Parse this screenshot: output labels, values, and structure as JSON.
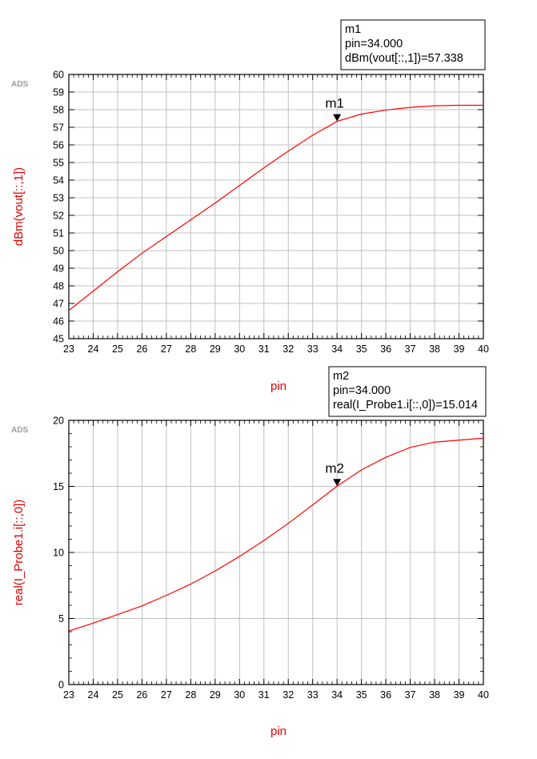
{
  "chart_data": [
    {
      "type": "line",
      "ads_label": "ADS",
      "xlabel": "pin",
      "ylabel": "dBm(vout[::,1])",
      "xlim": [
        23,
        40
      ],
      "ylim": [
        45,
        60
      ],
      "grid": true,
      "x_ticks": [
        23,
        24,
        25,
        26,
        27,
        28,
        29,
        30,
        31,
        32,
        33,
        34,
        35,
        36,
        37,
        38,
        39,
        40
      ],
      "y_ticks": [
        45,
        46,
        47,
        48,
        49,
        50,
        51,
        52,
        53,
        54,
        55,
        56,
        57,
        58,
        59,
        60
      ],
      "series": [
        {
          "color": "#ff0000",
          "x": [
            23,
            24,
            25,
            26,
            27,
            28,
            29,
            30,
            31,
            32,
            33,
            34,
            35,
            36,
            37,
            38,
            39,
            40
          ],
          "y": [
            46.6,
            47.7,
            48.8,
            49.85,
            50.8,
            51.75,
            52.7,
            53.7,
            54.7,
            55.65,
            56.55,
            57.338,
            57.75,
            57.98,
            58.13,
            58.22,
            58.25,
            58.25
          ]
        }
      ],
      "marker": {
        "name": "m1",
        "x": 34,
        "y": 57.338,
        "box_lines": [
          "m1",
          "pin=34.000",
          "dBm(vout[::,1])=57.338"
        ]
      }
    },
    {
      "type": "line",
      "ads_label": "ADS",
      "xlabel": "pin",
      "ylabel": "real(I_Probe1.i[::,0])",
      "xlim": [
        23,
        40
      ],
      "ylim": [
        0,
        20
      ],
      "grid": true,
      "x_ticks": [
        23,
        24,
        25,
        26,
        27,
        28,
        29,
        30,
        31,
        32,
        33,
        34,
        35,
        36,
        37,
        38,
        39,
        40
      ],
      "y_ticks": [
        0,
        5,
        10,
        15,
        20
      ],
      "series": [
        {
          "color": "#ff0000",
          "x": [
            23,
            24,
            25,
            26,
            27,
            28,
            29,
            30,
            31,
            32,
            33,
            34,
            35,
            36,
            37,
            38,
            39,
            40
          ],
          "y": [
            4.05,
            4.65,
            5.3,
            5.95,
            6.75,
            7.6,
            8.6,
            9.7,
            10.9,
            12.2,
            13.6,
            15.014,
            16.25,
            17.2,
            17.95,
            18.35,
            18.5,
            18.65
          ]
        }
      ],
      "marker": {
        "name": "m2",
        "x": 34,
        "y": 15.014,
        "box_lines": [
          "m2",
          "pin=34.000",
          "real(I_Probe1.i[::,0])=15.014"
        ]
      }
    }
  ]
}
